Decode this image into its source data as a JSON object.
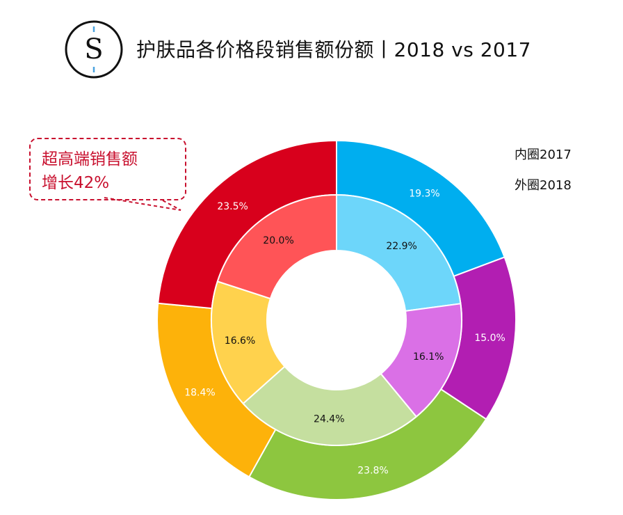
{
  "header": {
    "title": "护肤品各价格段销售额份额丨2018 vs 2017",
    "logo_letter": "S"
  },
  "callout": {
    "line1": "超高端销售额",
    "line2": "增长42%",
    "color": "#c8102e"
  },
  "legend": {
    "inner_label": "内圈2017",
    "outer_label": "外圈2018"
  },
  "chart_data": {
    "type": "pie",
    "variant": "double-donut",
    "rings": [
      {
        "name": "外圈2018",
        "slices": [
          {
            "value": 19.3,
            "label": "19.3%",
            "color": "#00aeef"
          },
          {
            "value": 15.0,
            "label": "15.0%",
            "color": "#b21eb2"
          },
          {
            "value": 23.8,
            "label": "23.8%",
            "color": "#8dc63f"
          },
          {
            "value": 18.4,
            "label": "18.4%",
            "color": "#fdb20a"
          },
          {
            "value": 23.5,
            "label": "23.5%",
            "color": "#d8001c"
          }
        ]
      },
      {
        "name": "内圈2017",
        "slices": [
          {
            "value": 22.9,
            "label": "22.9%",
            "color": "#6dd6fa"
          },
          {
            "value": 16.1,
            "label": "16.1%",
            "color": "#da70e6"
          },
          {
            "value": 24.4,
            "label": "24.4%",
            "color": "#c5df9f"
          },
          {
            "value": 16.6,
            "label": "16.6%",
            "color": "#ffd24d"
          },
          {
            "value": 20.0,
            "label": "20.0%",
            "color": "#ff5457"
          }
        ]
      }
    ]
  }
}
